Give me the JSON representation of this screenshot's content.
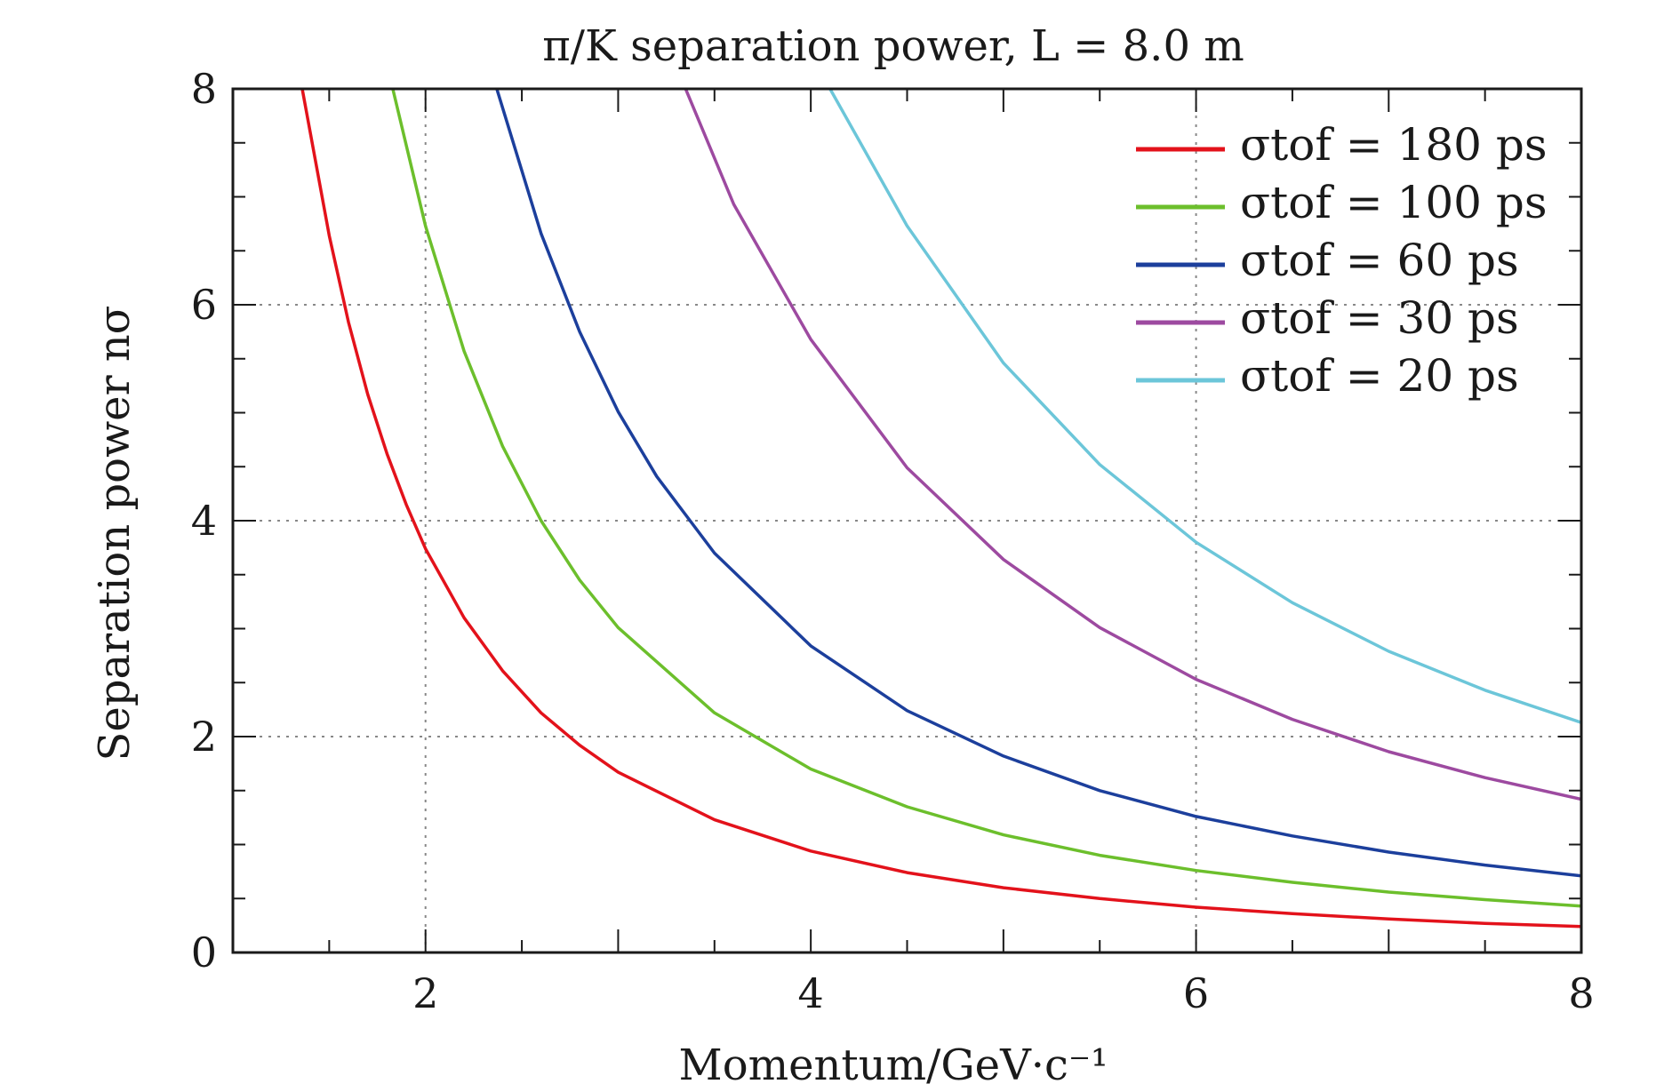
{
  "chart_data": {
    "type": "line",
    "title": "π/K separation power, L = 8.0 m",
    "xlabel": "Momentum/GeV·c⁻¹",
    "ylabel": "Separation power nσ",
    "xlim": [
      1,
      8
    ],
    "ylim": [
      0,
      8
    ],
    "x_ticks": [
      "2",
      "4",
      "6",
      "8"
    ],
    "y_ticks": [
      "0",
      "2",
      "4",
      "6",
      "8"
    ],
    "grid": "dotted",
    "legend_position": "top-right",
    "series": [
      {
        "name": "σtof = 180 ps",
        "sigma_ps": 180,
        "color": "#e3121b",
        "x": [
          1.36,
          1.5,
          1.6,
          1.7,
          1.8,
          1.9,
          2.0,
          2.2,
          2.4,
          2.6,
          2.8,
          3.0,
          3.5,
          4.0,
          4.5,
          5.0,
          5.5,
          6.0,
          6.5,
          7.0,
          7.5,
          8.0
        ],
        "y": [
          8.0,
          6.64,
          5.84,
          5.17,
          4.62,
          4.15,
          3.74,
          3.1,
          2.61,
          2.22,
          1.92,
          1.67,
          1.23,
          0.94,
          0.74,
          0.6,
          0.5,
          0.42,
          0.36,
          0.31,
          0.27,
          0.24
        ]
      },
      {
        "name": "σtof = 100 ps",
        "sigma_ps": 100,
        "color": "#6cbf2c",
        "x": [
          1.83,
          2.0,
          2.2,
          2.4,
          2.6,
          2.8,
          3.0,
          3.5,
          4.0,
          4.5,
          5.0,
          5.5,
          6.0,
          6.5,
          7.0,
          7.5,
          8.0
        ],
        "y": [
          8.0,
          6.73,
          5.57,
          4.69,
          4.0,
          3.45,
          3.01,
          2.22,
          1.7,
          1.35,
          1.09,
          0.9,
          0.76,
          0.65,
          0.56,
          0.49,
          0.43
        ]
      },
      {
        "name": "σtof = 60 ps",
        "sigma_ps": 60,
        "color": "#1c3f9c",
        "x": [
          2.37,
          2.6,
          2.8,
          3.0,
          3.2,
          3.5,
          4.0,
          4.5,
          5.0,
          5.5,
          6.0,
          6.5,
          7.0,
          7.5,
          8.0
        ],
        "y": [
          8.0,
          6.66,
          5.75,
          5.01,
          4.41,
          3.7,
          2.84,
          2.24,
          1.82,
          1.5,
          1.26,
          1.08,
          0.93,
          0.81,
          0.71
        ]
      },
      {
        "name": "σtof = 30 ps",
        "sigma_ps": 30,
        "color": "#9d4aa0",
        "x": [
          3.35,
          3.6,
          4.0,
          4.5,
          5.0,
          5.5,
          6.0,
          6.5,
          7.0,
          7.5,
          8.0
        ],
        "y": [
          8.0,
          6.93,
          5.68,
          4.49,
          3.64,
          3.01,
          2.53,
          2.16,
          1.86,
          1.62,
          1.42
        ]
      },
      {
        "name": "σtof = 20 ps",
        "sigma_ps": 20,
        "color": "#6cc6d9",
        "x": [
          4.1,
          4.5,
          5.0,
          5.5,
          6.0,
          6.5,
          7.0,
          7.5,
          8.0
        ],
        "y": [
          8.0,
          6.73,
          5.46,
          4.52,
          3.8,
          3.24,
          2.79,
          2.43,
          2.13
        ]
      }
    ]
  }
}
